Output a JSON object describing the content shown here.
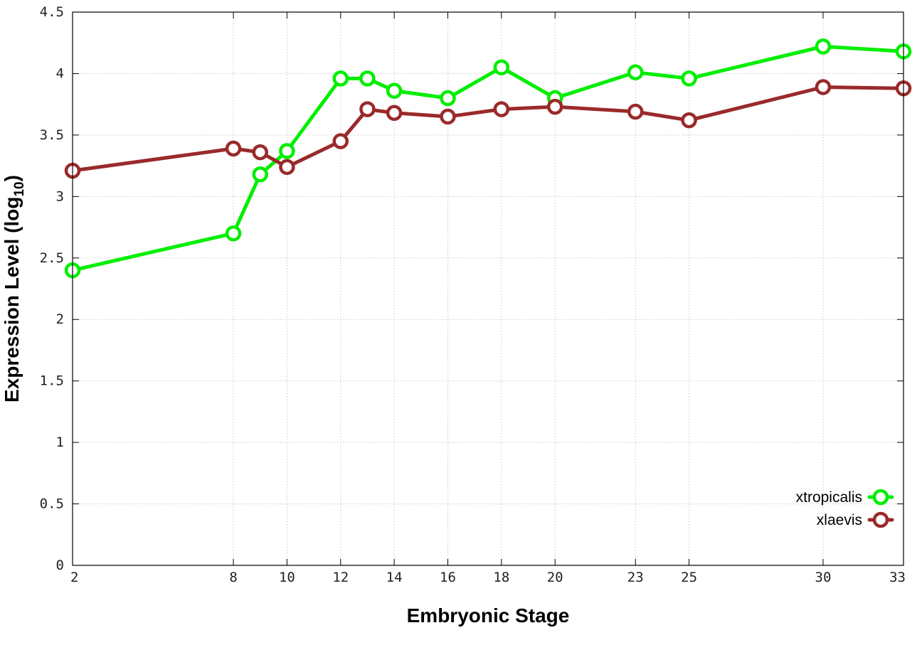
{
  "chart_data": {
    "type": "line",
    "xlabel": "Embryonic Stage",
    "ylabel": "Expression Level (log",
    "ylabel_subscript": "10",
    "ylabel_close": ")",
    "xlim": [
      2,
      33
    ],
    "ylim": [
      0,
      4.5
    ],
    "x_ticks": [
      2,
      8,
      10,
      12,
      14,
      16,
      18,
      20,
      23,
      25,
      30,
      33
    ],
    "y_ticks": [
      0,
      0.5,
      1,
      1.5,
      2,
      2.5,
      3,
      3.5,
      4,
      4.5
    ],
    "y_tick_labels": [
      "0",
      "0.5",
      "1",
      "1.5",
      "2",
      "2.5",
      "3",
      "3.5",
      "4",
      "4.5"
    ],
    "grid": true,
    "legend_position": "bottom-right",
    "series": [
      {
        "name": "xtropicalis",
        "color": "#00ee00",
        "x": [
          2,
          8,
          9,
          10,
          12,
          13,
          14,
          16,
          18,
          20,
          23,
          25,
          30,
          33
        ],
        "y": [
          2.4,
          2.7,
          3.18,
          3.37,
          3.96,
          3.96,
          3.86,
          3.8,
          4.05,
          3.8,
          4.01,
          3.96,
          4.22,
          4.18
        ]
      },
      {
        "name": "xlaevis",
        "color": "#9a2a2a",
        "x": [
          2,
          8,
          9,
          10,
          12,
          13,
          14,
          16,
          18,
          20,
          23,
          25,
          30,
          33
        ],
        "y": [
          3.21,
          3.39,
          3.36,
          3.24,
          3.45,
          3.71,
          3.68,
          3.65,
          3.71,
          3.73,
          3.69,
          3.62,
          3.89,
          3.88
        ]
      }
    ]
  }
}
